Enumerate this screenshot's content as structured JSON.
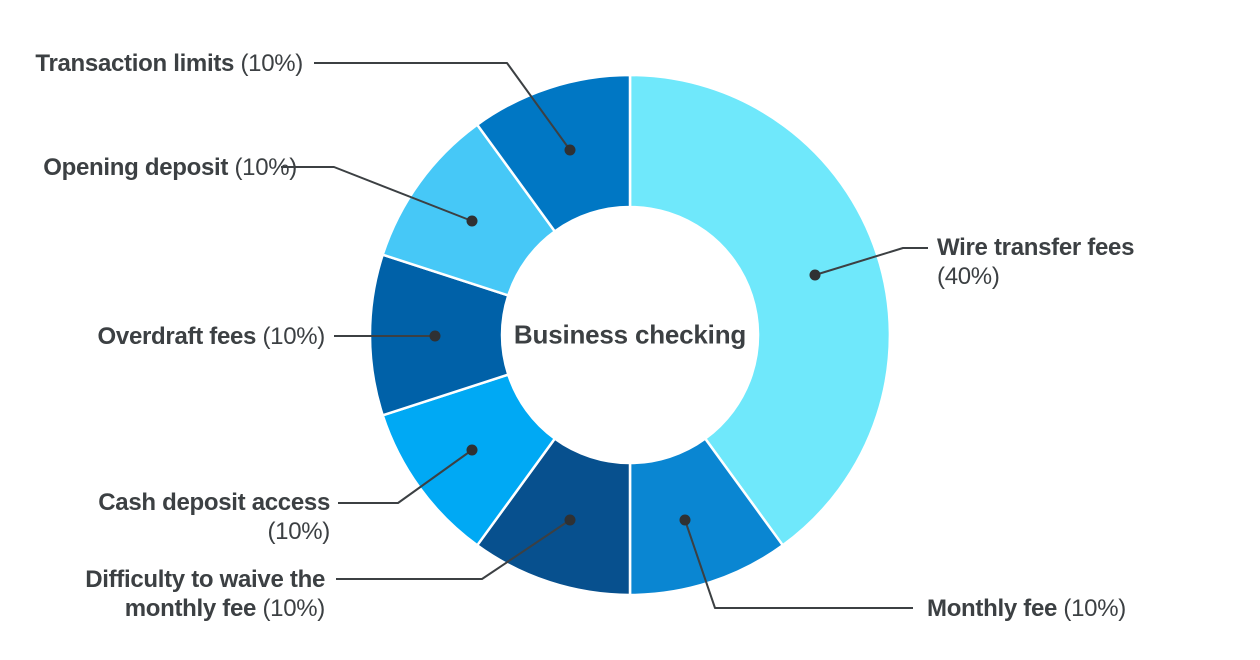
{
  "chart_data": {
    "type": "pie",
    "subtype": "donut",
    "title": "Business checking",
    "center_label": "Business checking",
    "unit": "%",
    "direction": "clockwise",
    "start_angle": "top",
    "legend_position": "outside-callouts",
    "background": "#FFFFFF",
    "text_color": "#3C4043",
    "leader_line_color": "#3C4043",
    "slices": [
      {
        "name": "Wire transfer fees",
        "value": 40,
        "pct_text": "(40%)",
        "color": "#6FE8FB"
      },
      {
        "name": "Monthly fee",
        "value": 10,
        "pct_text": "(10%)",
        "color": "#0A86D2"
      },
      {
        "name": "Difficulty to waive the monthly fee",
        "name_line1": "Difficulty to waive the",
        "name_line2": "monthly fee",
        "value": 10,
        "pct_text": "(10%)",
        "color": "#07508E"
      },
      {
        "name": "Cash deposit access",
        "value": 10,
        "pct_text": "(10%)",
        "color": "#00A9F4"
      },
      {
        "name": "Overdraft fees",
        "value": 10,
        "pct_text": "(10%)",
        "color": "#0061A8"
      },
      {
        "name": "Opening deposit",
        "value": 10,
        "pct_text": "(10%)",
        "color": "#46C8F7"
      },
      {
        "name": "Transaction limits",
        "value": 10,
        "pct_text": "(10%)",
        "color": "#0077C4"
      }
    ]
  }
}
